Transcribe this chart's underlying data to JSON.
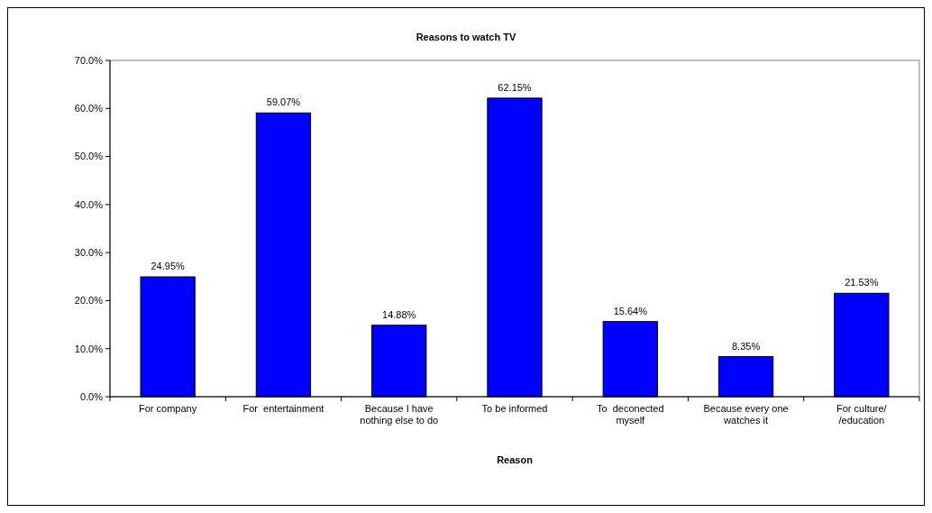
{
  "chart_data": {
    "type": "bar",
    "title": "Reasons to watch TV",
    "xlabel": "Reason",
    "categories": [
      "For company",
      "For  entertainment",
      "Because I have nothing else to do",
      "To be informed",
      "To  deconected myself",
      "Because every one watches it",
      "For culture/ /education"
    ],
    "values": [
      24.95,
      59.07,
      14.88,
      62.15,
      15.64,
      8.35,
      21.53
    ],
    "value_labels": [
      "24.95%",
      "59.07%",
      "14.88%",
      "62.15%",
      "15.64%",
      "8.35%",
      "21.53%"
    ],
    "color": "#0000ff",
    "ylim": [
      0,
      70
    ],
    "yticks": [
      {
        "value": 0,
        "label": "0.0%"
      },
      {
        "value": 10,
        "label": "10.0%"
      },
      {
        "value": 20,
        "label": "20.0%"
      },
      {
        "value": 30,
        "label": "30.0%"
      },
      {
        "value": 40,
        "label": "40.0%"
      },
      {
        "value": 50,
        "label": "50.0%"
      },
      {
        "value": 60,
        "label": "60.0%"
      },
      {
        "value": 70,
        "label": "70.0%"
      }
    ],
    "grid": false
  }
}
